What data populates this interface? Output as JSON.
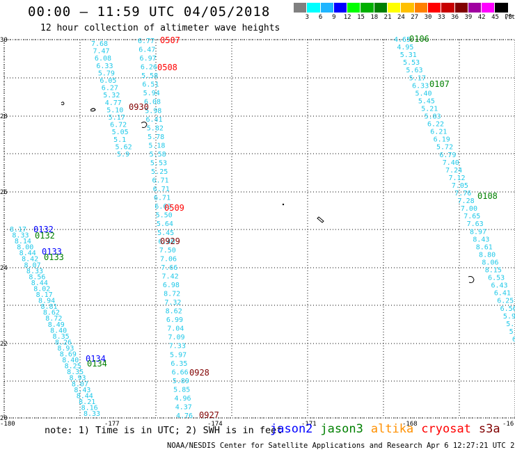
{
  "header": {
    "title": "00:00 – 11:59 UTC 04/05/2018",
    "subtitle": "12 hour collection of altimeter wave heights"
  },
  "colorbar": {
    "colors": [
      "#808080",
      "#00ffff",
      "#1fb5ff",
      "#0000ff",
      "#00ff00",
      "#00b000",
      "#008000",
      "#ffff00",
      "#ffc000",
      "#ff8000",
      "#ff0000",
      "#c80000",
      "#800000",
      "#a000a0",
      "#ff00ff",
      "#000000"
    ],
    "labels": [
      "3",
      "6",
      "9",
      "12",
      "15",
      "18",
      "21",
      "24",
      "27",
      "30",
      "33",
      "36",
      "39",
      "42",
      "45",
      "70"
    ],
    "unit": "(ft)"
  },
  "axes": {
    "lat_labels": [
      "30",
      "28",
      "26",
      "24",
      "22",
      "20"
    ],
    "lon_labels": [
      "-180",
      "-177",
      "-174",
      "-171",
      "-168",
      "-16"
    ]
  },
  "tracks": [
    {
      "passes": [
        {
          "label": "0507",
          "color": "#ff0000"
        },
        {
          "label": "0508",
          "color": "#ff0000"
        },
        {
          "label": "0930",
          "color": "#800000"
        },
        {
          "label": "0509",
          "color": "#ff0000"
        },
        {
          "label": "0929",
          "color": "#800000"
        },
        {
          "label": "0928",
          "color": "#800000"
        },
        {
          "label": "0927",
          "color": "#800000"
        }
      ]
    },
    {
      "passes": [
        {
          "label": "0106",
          "color": "#008000"
        },
        {
          "label": "0107",
          "color": "#008000"
        },
        {
          "label": "0108",
          "color": "#008000"
        }
      ]
    },
    {
      "passes": [
        {
          "label": "0132",
          "color": "#0000ff"
        },
        {
          "label": "0132",
          "color": "#008000"
        },
        {
          "label": "0133",
          "color": "#0000ff"
        },
        {
          "label": "0133",
          "color": "#008000"
        },
        {
          "label": "0134",
          "color": "#0000ff"
        },
        {
          "label": "0134",
          "color": "#008000"
        }
      ]
    }
  ],
  "track_a_values": [
    "6.77",
    "6.47",
    "6.97",
    "6.26",
    "5.58",
    "6.51",
    "5.94",
    "6.08",
    "5.98",
    "6.41",
    "5.82",
    "5.78",
    "5.18",
    "5.58",
    "5.53",
    "5.25",
    "6.71",
    "6.71",
    "6.71",
    "6.63",
    "5.50",
    "5.64",
    "5.45",
    "6.40",
    "7.50",
    "7.06",
    "7.66",
    "7.42",
    "6.98",
    "8.72",
    "7.32",
    "8.62",
    "6.99",
    "7.04",
    "7.09",
    "7.33",
    "5.97",
    "6.35",
    "6.66",
    "5.89",
    "5.85",
    "4.96",
    "4.37",
    "4.76"
  ],
  "track_b_values": [
    "7.68",
    "7.47",
    "6.08",
    "6.33",
    "5.79",
    "6.05",
    "6.27",
    "5.32",
    "4.77",
    "5.10",
    "5.17",
    "6.72",
    "5.05",
    "5.1",
    "5.62",
    "5.9"
  ],
  "track_c_values": [
    "4.65",
    "4.95",
    "5.31",
    "5.53",
    "5.63",
    "5.17",
    "6.33",
    "5.40",
    "5.45",
    "5.21",
    "5.83",
    "6.22",
    "6.21",
    "6.19",
    "5.72",
    "6.79",
    "7.40",
    "7.24",
    "7.12",
    "7.05",
    "7.76",
    "7.28",
    "7.00",
    "7.65",
    "7.63",
    "8.97",
    "8.43",
    "8.61",
    "8.80",
    "8.06",
    "8.15",
    "6.53",
    "6.43",
    "6.41",
    "6.25",
    "6.56",
    "5.93",
    "5.77",
    "5.65",
    "6.2"
  ],
  "track_d_values": [
    "8.17",
    "8.33",
    "8.14",
    "8.00",
    "8.44",
    "8.42",
    "8.07",
    "8.33",
    "8.56",
    "8.44",
    "8.02",
    "8.17",
    "8.94",
    "8.81",
    "8.62",
    "8.72",
    "8.49",
    "8.40",
    "8.35",
    "8.26",
    "8.93",
    "8.69",
    "8.40",
    "8.25",
    "8.35",
    "8.93",
    "8.07",
    "8.43",
    "8.44",
    "8.21",
    "8.16",
    "8.33"
  ],
  "footer": {
    "note": "note: 1) Time is in UTC; 2) SWH is in feet",
    "satellites": [
      {
        "name": "jason2",
        "color": "#0000ff"
      },
      {
        "name": "jason3",
        "color": "#008000"
      },
      {
        "name": "altika",
        "color": "#ff9000"
      },
      {
        "name": "cryosat",
        "color": "#ff0000"
      },
      {
        "name": "s3a",
        "color": "#800000"
      }
    ],
    "credit": "NOAA/NESDIS Center for Satellite Applications and Research   Apr  6 12:27:21 UTC 2018"
  }
}
